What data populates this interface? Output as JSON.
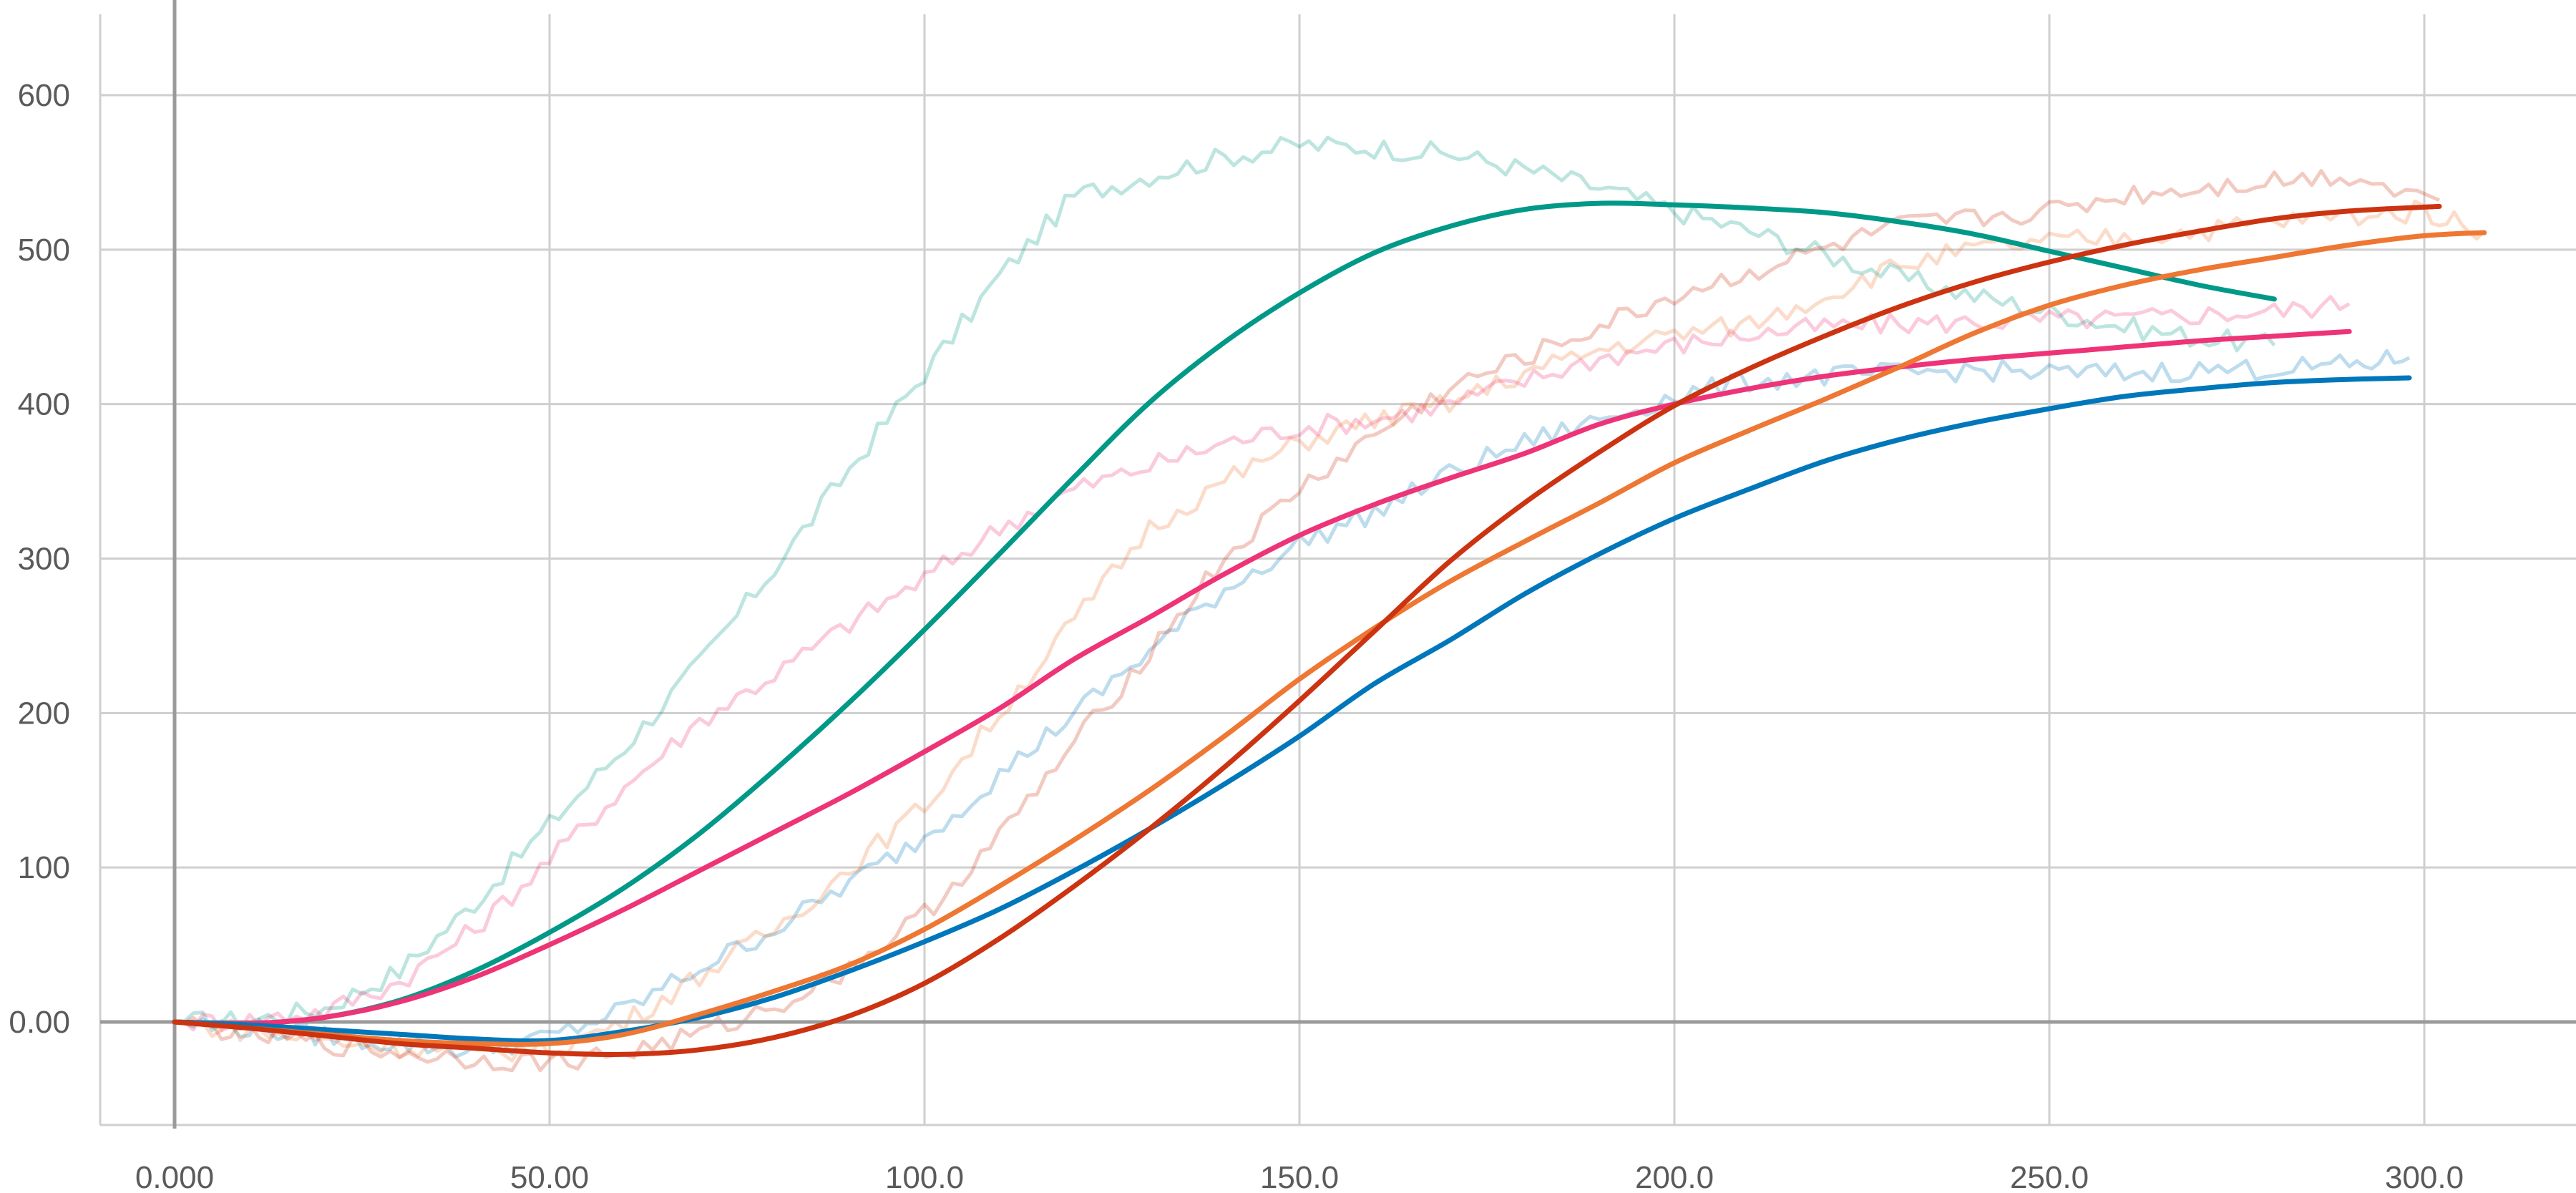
{
  "chart_data": {
    "type": "line",
    "title": "",
    "xlabel": "",
    "ylabel": "",
    "xlim": [
      -10,
      320
    ],
    "ylim": [
      -65,
      625
    ],
    "grid": true,
    "x_ticks": [
      0,
      50,
      100,
      150,
      200,
      250,
      300
    ],
    "x_tick_labels": [
      "0.000",
      "50.00",
      "100.0",
      "150.0",
      "200.0",
      "250.0",
      "300.0"
    ],
    "y_ticks": [
      0,
      100,
      200,
      300,
      400,
      500,
      600
    ],
    "y_tick_labels": [
      "0.00",
      "100",
      "200",
      "300",
      "400",
      "500",
      "600"
    ],
    "series": [
      {
        "color": "#009988",
        "x": [
          0,
          10,
          20,
          30,
          40,
          50,
          60,
          70,
          80,
          90,
          100,
          110,
          120,
          130,
          140,
          150,
          160,
          170,
          180,
          190,
          200,
          210,
          220,
          230,
          240,
          250,
          260,
          270,
          280
        ],
        "y": [
          0,
          -1,
          3,
          14,
          33,
          58,
          87,
          122,
          163,
          207,
          254,
          303,
          353,
          401,
          440,
          472,
          498,
          515,
          526,
          530,
          529,
          527,
          524,
          518,
          510,
          499,
          488,
          477,
          468
        ],
        "raw": [
          0,
          1,
          9,
          33,
          77,
          128,
          178,
          232,
          294,
          358,
          420,
          483,
          535,
          548,
          560,
          568,
          566,
          562,
          552,
          540,
          525,
          512,
          497,
          482,
          470,
          460,
          450,
          443,
          438
        ]
      },
      {
        "color": "#ee3377",
        "x": [
          0,
          10,
          20,
          30,
          40,
          50,
          60,
          70,
          80,
          90,
          100,
          110,
          120,
          130,
          140,
          150,
          160,
          170,
          180,
          190,
          200,
          210,
          220,
          230,
          240,
          250,
          260,
          270,
          280,
          290
        ],
        "y": [
          0,
          -1,
          3,
          13,
          29,
          50,
          73,
          98,
          123,
          148,
          175,
          203,
          235,
          262,
          290,
          315,
          335,
          352,
          368,
          387,
          400,
          410,
          418,
          424,
          429,
          433,
          437,
          441,
          444,
          447
        ],
        "raw": [
          0,
          1,
          7,
          26,
          60,
          105,
          152,
          195,
          225,
          258,
          287,
          320,
          345,
          360,
          375,
          385,
          390,
          400,
          415,
          430,
          438,
          445,
          450,
          452,
          453,
          455,
          455,
          458,
          460,
          465
        ]
      },
      {
        "color": "#0077bb",
        "x": [
          0,
          10,
          20,
          30,
          40,
          50,
          60,
          70,
          80,
          90,
          100,
          110,
          120,
          130,
          140,
          150,
          160,
          170,
          180,
          190,
          200,
          210,
          220,
          230,
          240,
          250,
          260,
          270,
          280,
          290,
          298
        ],
        "y": [
          0,
          -2,
          -5,
          -8,
          -11,
          -12,
          -6,
          3,
          16,
          33,
          52,
          73,
          98,
          125,
          154,
          185,
          219,
          247,
          277,
          303,
          326,
          345,
          363,
          377,
          388,
          397,
          405,
          410,
          414,
          416,
          417
        ],
        "raw": [
          0,
          -4,
          -9,
          -14,
          -18,
          -10,
          8,
          35,
          60,
          90,
          120,
          160,
          200,
          240,
          280,
          310,
          330,
          355,
          375,
          390,
          405,
          415,
          418,
          420,
          422,
          420,
          420,
          422,
          423,
          425,
          430
        ]
      },
      {
        "color": "#ee7733",
        "x": [
          0,
          10,
          20,
          30,
          40,
          50,
          60,
          70,
          80,
          90,
          100,
          110,
          120,
          130,
          140,
          150,
          160,
          170,
          180,
          190,
          200,
          210,
          220,
          230,
          240,
          250,
          260,
          270,
          280,
          290,
          300,
          308
        ],
        "y": [
          0,
          -4,
          -8,
          -12,
          -14,
          -14,
          -8,
          5,
          20,
          37,
          60,
          88,
          118,
          150,
          185,
          222,
          255,
          285,
          311,
          336,
          362,
          383,
          403,
          424,
          446,
          464,
          477,
          487,
          495,
          503,
          509,
          511
        ],
        "raw": [
          0,
          -6,
          -12,
          -16,
          -19,
          -18,
          0,
          30,
          60,
          100,
          140,
          200,
          260,
          320,
          350,
          375,
          390,
          400,
          420,
          435,
          445,
          452,
          470,
          490,
          500,
          505,
          508,
          512,
          518,
          522,
          525,
          512
        ]
      },
      {
        "color": "#cc3311",
        "x": [
          0,
          10,
          20,
          30,
          40,
          50,
          60,
          70,
          80,
          90,
          100,
          110,
          120,
          130,
          140,
          150,
          160,
          170,
          180,
          190,
          200,
          210,
          220,
          230,
          240,
          250,
          260,
          270,
          280,
          290,
          302
        ],
        "y": [
          0,
          -4,
          -9,
          -14,
          -17,
          -20,
          -21,
          -18,
          -10,
          4,
          25,
          54,
          88,
          125,
          165,
          208,
          253,
          298,
          336,
          369,
          399,
          423,
          444,
          463,
          479,
          492,
          503,
          512,
          520,
          525,
          528
        ],
        "raw": [
          0,
          -8,
          -14,
          -20,
          -24,
          -26,
          -20,
          -8,
          10,
          35,
          70,
          120,
          180,
          240,
          300,
          345,
          380,
          410,
          430,
          450,
          470,
          485,
          500,
          515,
          520,
          525,
          535,
          540,
          545,
          548,
          532
        ]
      }
    ]
  }
}
